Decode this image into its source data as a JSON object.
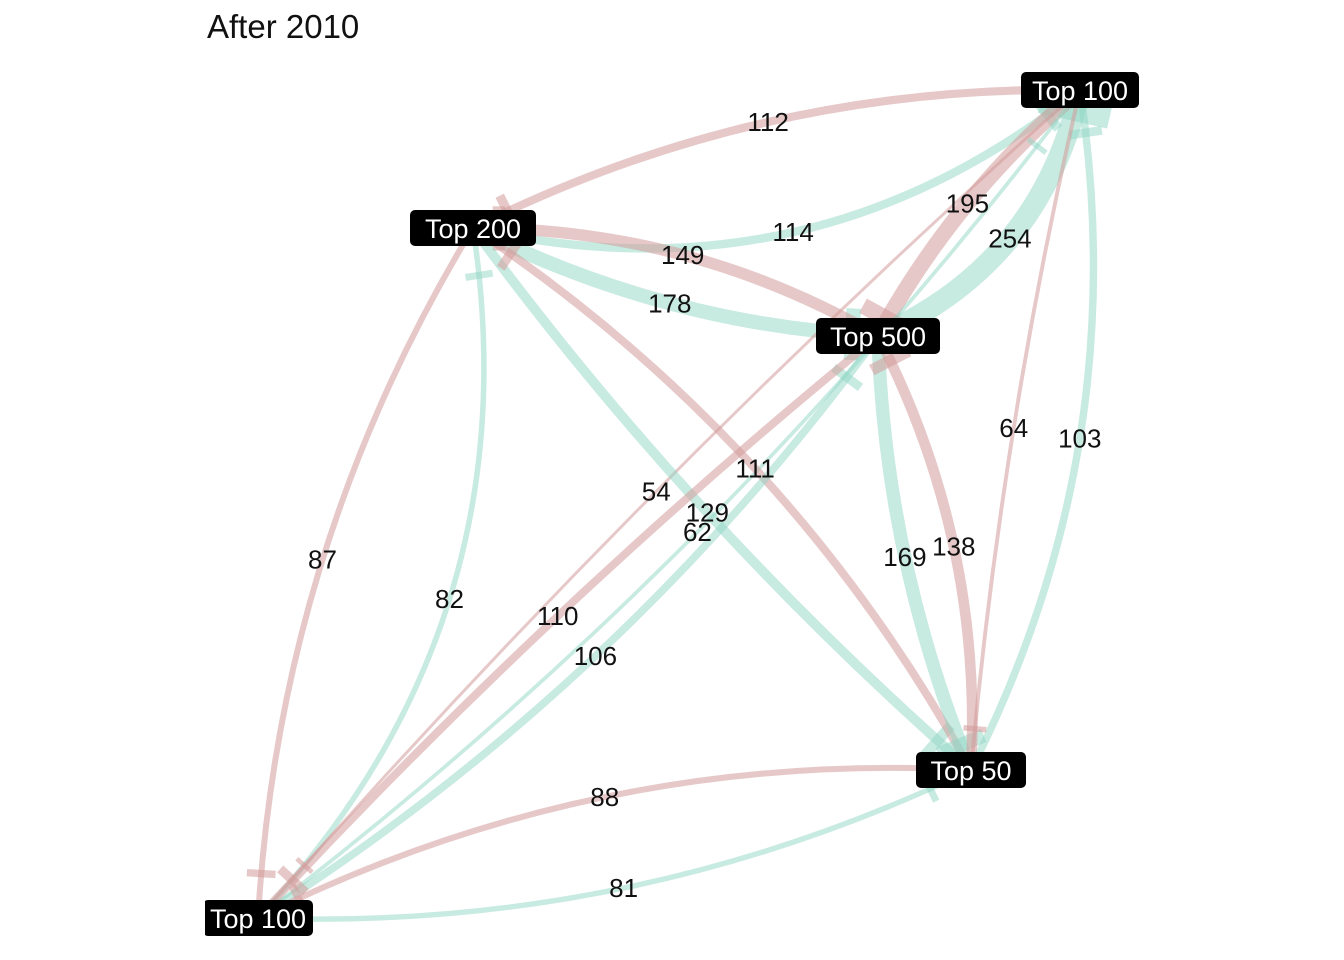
{
  "title": "After 2010",
  "colors": {
    "green": "#8fd6c4",
    "red": "#d49a9a",
    "node_bg": "#000000",
    "node_text": "#ffffff",
    "background": "#ffffff"
  },
  "nodes": [
    {
      "id": "tr",
      "label": "Top 100"
    },
    {
      "id": "t200",
      "label": "Top 200"
    },
    {
      "id": "t500",
      "label": "Top 500"
    },
    {
      "id": "t50",
      "label": "Top 50"
    },
    {
      "id": "bl",
      "label": "Top 100"
    }
  ],
  "edges": [
    {
      "from": "t200",
      "to": "tr",
      "value": 114,
      "color": "green"
    },
    {
      "from": "tr",
      "to": "t200",
      "value": 112,
      "color": "red"
    },
    {
      "from": "t500",
      "to": "tr",
      "value": 254,
      "color": "green"
    },
    {
      "from": "tr",
      "to": "t500",
      "value": 195,
      "color": "red"
    },
    {
      "from": "t200",
      "to": "t500",
      "value": 178,
      "color": "green"
    },
    {
      "from": "t500",
      "to": "t200",
      "value": 149,
      "color": "red"
    },
    {
      "from": "bl",
      "to": "t200",
      "value": 82,
      "color": "green"
    },
    {
      "from": "t200",
      "to": "bl",
      "value": 87,
      "color": "red"
    },
    {
      "from": "bl",
      "to": "tr",
      "value": 62,
      "color": "green"
    },
    {
      "from": "tr",
      "to": "bl",
      "value": 54,
      "color": "red"
    },
    {
      "from": "t200",
      "to": "t50",
      "value": 129,
      "color": "green"
    },
    {
      "from": "t50",
      "to": "t200",
      "value": 111,
      "color": "red"
    },
    {
      "from": "bl",
      "to": "t500",
      "value": 106,
      "color": "green"
    },
    {
      "from": "t500",
      "to": "bl",
      "value": 110,
      "color": "red"
    },
    {
      "from": "t500",
      "to": "t50",
      "value": 169,
      "color": "green"
    },
    {
      "from": "t50",
      "to": "t500",
      "value": 138,
      "color": "red"
    },
    {
      "from": "t50",
      "to": "tr",
      "value": 103,
      "color": "green"
    },
    {
      "from": "tr",
      "to": "t50",
      "value": 64,
      "color": "red"
    },
    {
      "from": "t50",
      "to": "bl",
      "value": 88,
      "color": "red"
    },
    {
      "from": "bl",
      "to": "t50",
      "value": 81,
      "color": "green"
    }
  ]
}
